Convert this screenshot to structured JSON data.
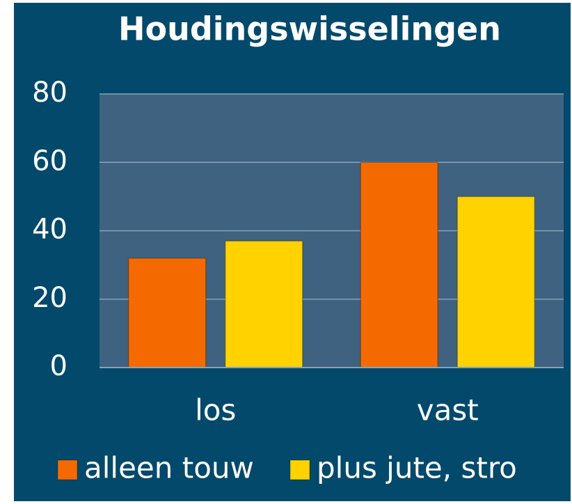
{
  "chart_data": {
    "type": "bar",
    "title": "Houdingswisselingen",
    "categories": [
      "los",
      "vast"
    ],
    "series": [
      {
        "name": "alleen touw",
        "color": "#f56a00",
        "values": [
          32,
          60
        ]
      },
      {
        "name": "plus jute, stro",
        "color": "#ffd200",
        "values": [
          37,
          50
        ]
      }
    ],
    "ylim": [
      0,
      80
    ],
    "yticks": [
      0,
      20,
      40,
      60,
      80
    ],
    "grid": true,
    "legend": "bottom"
  }
}
